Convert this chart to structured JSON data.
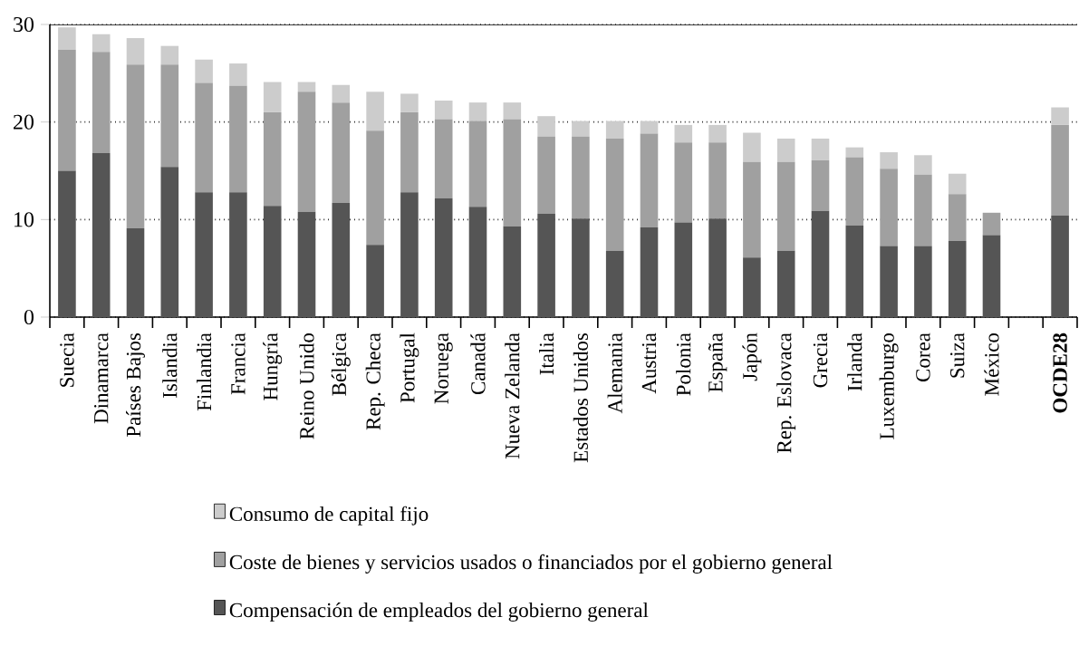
{
  "chart_data": {
    "type": "bar",
    "stacked": true,
    "categories": [
      "Suecia",
      "Dinamarca",
      "Países Bajos",
      "Islandia",
      "Finlandia",
      "Francia",
      "Hungría",
      "Reino Unido",
      "Bélgica",
      "Rep. Checa",
      "Portugal",
      "Noruega",
      "Canadá",
      "Nueva Zelanda",
      "Italia",
      "Estados Unidos",
      "Alemania",
      "Austria",
      "Polonia",
      "España",
      "Japón",
      "Rep. Eslovaca",
      "Grecia",
      "Irlanda",
      "Luxemburgo",
      "Corea",
      "Suiza",
      "México",
      null,
      "**OCDE28**"
    ],
    "series": [
      {
        "name": "Compensación de empleados del gobierno general",
        "color": "#555555",
        "values": [
          15.0,
          16.8,
          9.1,
          15.4,
          12.8,
          12.8,
          11.4,
          10.8,
          11.7,
          7.4,
          12.8,
          12.2,
          11.3,
          9.3,
          10.6,
          10.1,
          6.8,
          9.2,
          9.7,
          10.1,
          6.1,
          6.8,
          10.9,
          9.4,
          7.3,
          7.3,
          7.8,
          8.4,
          null,
          10.4
        ]
      },
      {
        "name": "Coste de bienes y servicios usados o financiados por el gobierno general",
        "color": "#a0a0a0",
        "values": [
          12.4,
          10.4,
          16.8,
          10.5,
          11.2,
          10.9,
          9.6,
          12.3,
          10.3,
          11.7,
          8.2,
          8.1,
          8.8,
          11.0,
          7.9,
          8.4,
          11.5,
          9.6,
          8.2,
          7.8,
          9.8,
          9.1,
          5.2,
          7.0,
          7.9,
          7.3,
          4.8,
          2.3,
          null,
          9.3
        ]
      },
      {
        "name": "Consumo de capital fijo",
        "color": "#cccccc",
        "values": [
          2.3,
          1.8,
          2.7,
          1.9,
          2.4,
          2.3,
          3.1,
          1.0,
          1.8,
          4.0,
          1.9,
          1.9,
          1.9,
          1.7,
          2.1,
          1.6,
          1.8,
          1.3,
          1.8,
          1.8,
          3.0,
          2.4,
          2.2,
          1.0,
          1.7,
          2.0,
          2.1,
          null,
          null,
          1.8
        ]
      }
    ],
    "ylim": [
      0,
      30
    ],
    "yticks": [
      0,
      10,
      20,
      30
    ],
    "grid": "y",
    "legend": "bottom"
  }
}
